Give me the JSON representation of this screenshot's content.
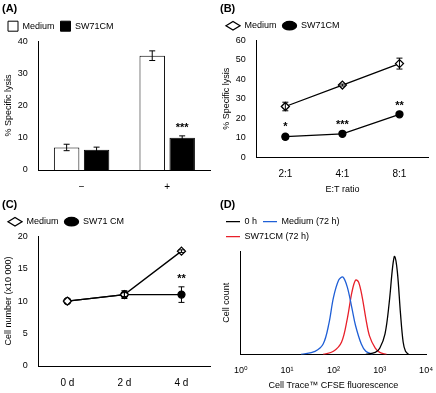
{
  "chart_data": [
    {
      "type": "bar",
      "title": "(A)",
      "y_label": "% Specific lysis",
      "categories": [
        "−",
        "+"
      ],
      "series": [
        {
          "name": "Medium",
          "color": "#ffffff",
          "values": [
            7,
            35.5
          ],
          "errors": [
            1,
            1.5
          ]
        },
        {
          "name": "SW71CM",
          "color": "#000000",
          "values": [
            6.3,
            10
          ],
          "errors": [
            0.8,
            0.6
          ],
          "annotations": [
            null,
            "***"
          ]
        }
      ],
      "ylim": [
        0,
        40
      ],
      "yticks": [
        0,
        10,
        20,
        30,
        40
      ],
      "grid": false,
      "legend": "top-left"
    },
    {
      "type": "line",
      "title": "(B)",
      "x_label": "E:T ratio",
      "y_label": "% Specific lysis",
      "categories": [
        "2:1",
        "4:1",
        "8:1"
      ],
      "series": [
        {
          "name": "Medium",
          "color": "#000000",
          "marker": "diamond",
          "values": [
            26,
            37,
            48
          ],
          "errors": [
            2.2,
            0.5,
            2.8
          ]
        },
        {
          "name": "SW71CM",
          "color": "#000000",
          "marker": "circle",
          "values": [
            10.5,
            12,
            22
          ],
          "errors": [
            1.2,
            0.5,
            0.6
          ],
          "annotations": [
            "*",
            "***",
            "**"
          ]
        }
      ],
      "ylim": [
        0,
        60
      ],
      "yticks": [
        0,
        10,
        20,
        30,
        40,
        50,
        60
      ],
      "grid": false,
      "legend": "top-left"
    },
    {
      "type": "line",
      "title": "(C)",
      "y_label": "Cell number (x10 000)",
      "categories": [
        "0 d",
        "2 d",
        "4 d"
      ],
      "series": [
        {
          "name": "Medium",
          "color": "#000000",
          "marker": "diamond",
          "values": [
            10,
            11,
            17.7
          ],
          "errors": [
            null,
            0.3,
            0.2
          ]
        },
        {
          "name": "SW71 CM",
          "color": "#000000",
          "marker": "circle",
          "values": [
            10,
            11,
            11
          ],
          "errors": [
            null,
            0.6,
            1.2
          ],
          "annotations": [
            null,
            null,
            "**"
          ]
        }
      ],
      "ylim": [
        0,
        20
      ],
      "yticks": [
        0,
        5,
        10,
        15,
        20
      ],
      "grid": false,
      "legend": "top-left"
    },
    {
      "type": "line",
      "title": "(D)",
      "x_label": "Cell Trace™ CFSE fluorescence",
      "y_label": "Cell count",
      "log": "x",
      "xlim": [
        1,
        10000
      ],
      "xticks": [
        {
          "value": 1,
          "label": "10⁰"
        },
        {
          "value": 10,
          "label": "10¹"
        },
        {
          "value": 100,
          "label": "10²"
        },
        {
          "value": 1000,
          "label": "10³"
        },
        {
          "value": 10000,
          "label": "10⁴"
        }
      ],
      "ylim": [
        0,
        100
      ],
      "tick_labels": "x",
      "grid": false,
      "legend": "top-left",
      "series": [
        {
          "name": "0 h",
          "color": "#000000",
          "x": [
            500,
            800,
            1000,
            1300,
            1600,
            1900,
            2100,
            2400,
            2800,
            3200,
            3600,
            4200
          ],
          "values": [
            0,
            2,
            6,
            20,
            50,
            85,
            95,
            80,
            40,
            12,
            3,
            0
          ]
        },
        {
          "name": "Medium (72 h)",
          "color": "#1f5fd6",
          "x": [
            20,
            40,
            60,
            80,
            100,
            130,
            160,
            200,
            250,
            300,
            400,
            500,
            700
          ],
          "values": [
            0,
            3,
            10,
            30,
            55,
            72,
            75,
            65,
            45,
            28,
            10,
            3,
            0
          ]
        },
        {
          "name": "SW71CM (72 h)",
          "color": "#e8202a",
          "x": [
            60,
            100,
            150,
            200,
            250,
            300,
            350,
            420,
            500,
            600,
            800,
            1000,
            1400
          ],
          "values": [
            0,
            3,
            12,
            35,
            60,
            72,
            70,
            55,
            35,
            18,
            6,
            2,
            0
          ]
        }
      ]
    }
  ]
}
